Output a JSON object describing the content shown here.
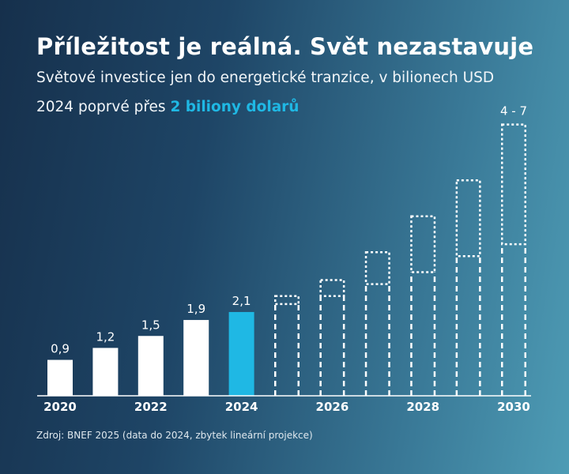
{
  "title": "Příležitost je reálná. Svět nezastavuje",
  "subtitle": "Světové investice jen do energetické tranzice, v bilionech USD",
  "highlight": {
    "prefix": "2024 poprvé přes ",
    "emphasis": "2 biliony dolarů"
  },
  "source": "Zdroj: BNEF 2025 (data do 2024, zbytek lineární projekce)",
  "colors": {
    "actual_bar": "#ffffff",
    "highlight_bar": "#1fb8e4",
    "projection": "#ffffff",
    "axis": "#ffffff"
  },
  "chart_data": {
    "type": "bar",
    "categories": [
      "2020",
      "2021",
      "2022",
      "2023",
      "2024",
      "2025",
      "2026",
      "2027",
      "2028",
      "2029",
      "2030"
    ],
    "x_tick_labels": [
      "2020",
      "",
      "2022",
      "",
      "2024",
      "",
      "2026",
      "",
      "2028",
      "",
      "2030"
    ],
    "actual": [
      0.9,
      1.2,
      1.5,
      1.9,
      2.1,
      null,
      null,
      null,
      null,
      null,
      null
    ],
    "data_labels": [
      "0,9",
      "1,2",
      "1,5",
      "1,9",
      "2,1",
      "",
      "",
      "",
      "",
      "",
      ""
    ],
    "highlight_category": "2024",
    "projection_low": [
      null,
      null,
      null,
      null,
      null,
      2.3,
      2.5,
      2.8,
      3.1,
      3.5,
      3.8
    ],
    "projection_high": [
      null,
      null,
      null,
      null,
      null,
      2.5,
      2.9,
      3.6,
      4.5,
      5.4,
      6.8
    ],
    "range_annotation": "4 - 7",
    "ylim": [
      0,
      7
    ],
    "xlabel": "",
    "ylabel": ""
  }
}
